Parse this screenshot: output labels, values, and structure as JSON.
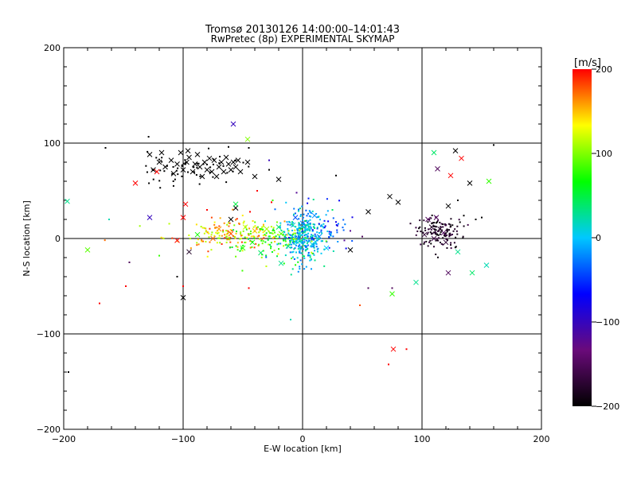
{
  "chart_data": {
    "type": "scatter",
    "title": "Tromsø 20130126 14:00:00–14:01:43",
    "subtitle": "RwPretec (8p) EXPERIMENTAL SKYMAP",
    "xlabel": "E-W location [km]",
    "ylabel": "N-S location [km]",
    "xlim": [
      -200,
      200
    ],
    "ylim": [
      -200,
      200
    ],
    "x_ticks": [
      "−200",
      "−100",
      "0",
      "100",
      "200"
    ],
    "y_ticks": [
      "−200",
      "−100",
      "0",
      "100",
      "200"
    ],
    "grid_lines": [
      -100,
      0,
      100
    ],
    "colorbar": {
      "label": "[m/s]",
      "range": [
        -200,
        200
      ],
      "ticks": [
        "200",
        "100",
        "0",
        "−100",
        "−200"
      ],
      "stops": [
        "#000000",
        "#6a0a7a",
        "#0000ff",
        "#00c8ff",
        "#00ff00",
        "#ffff00",
        "#ff0000"
      ]
    },
    "marker_points": [
      [
        -120,
        80,
        -200
      ],
      [
        -115,
        75,
        -200
      ],
      [
        -110,
        82,
        -200
      ],
      [
        -105,
        78,
        -200
      ],
      [
        -100,
        72,
        -200
      ],
      [
        -97,
        80,
        -200
      ],
      [
        -95,
        85,
        -200
      ],
      [
        -92,
        70,
        -200
      ],
      [
        -90,
        78,
        -200
      ],
      [
        -88,
        88,
        -200
      ],
      [
        -86,
        75,
        -200
      ],
      [
        -84,
        65,
        -200
      ],
      [
        -82,
        80,
        -200
      ],
      [
        -80,
        72,
        -200
      ],
      [
        -78,
        84,
        -200
      ],
      [
        -76,
        70,
        -200
      ],
      [
        -74,
        82,
        -200
      ],
      [
        -72,
        65,
        -200
      ],
      [
        -70,
        75,
        -200
      ],
      [
        -68,
        80,
        -200
      ],
      [
        -66,
        70,
        -200
      ],
      [
        -64,
        85,
        -200
      ],
      [
        -62,
        78,
        -200
      ],
      [
        -60,
        72,
        -200
      ],
      [
        -58,
        80,
        -200
      ],
      [
        -56,
        75,
        -200
      ],
      [
        -54,
        82,
        -200
      ],
      [
        -125,
        72,
        -200
      ],
      [
        -128,
        88,
        -200
      ],
      [
        -118,
        90,
        -200
      ],
      [
        -108,
        68,
        -200
      ],
      [
        -102,
        90,
        -200
      ],
      [
        -96,
        92,
        -200
      ],
      [
        -52,
        70,
        -200
      ],
      [
        -46,
        80,
        -200
      ],
      [
        -40,
        65,
        -200
      ],
      [
        -20,
        62,
        -200
      ],
      [
        -56,
        32,
        -200
      ],
      [
        -60,
        20,
        -200
      ],
      [
        -100,
        -62,
        -200
      ],
      [
        55,
        28,
        -200
      ],
      [
        73,
        44,
        -200
      ],
      [
        80,
        38,
        -200
      ],
      [
        140,
        58,
        -200
      ],
      [
        128,
        92,
        -200
      ],
      [
        113,
        73,
        -150
      ],
      [
        122,
        34,
        -200
      ],
      [
        105,
        20,
        -150
      ],
      [
        112,
        22,
        -150
      ],
      [
        108,
        12,
        -180
      ],
      [
        102,
        4,
        -170
      ],
      [
        110,
        0,
        -160
      ],
      [
        118,
        6,
        -150
      ],
      [
        120,
        -4,
        -170
      ],
      [
        115,
        10,
        -180
      ],
      [
        40,
        -12,
        -200
      ],
      [
        122,
        -36,
        -150
      ],
      [
        -58,
        120,
        -100
      ],
      [
        -128,
        22,
        -100
      ],
      [
        -100,
        22,
        200
      ],
      [
        -98,
        36,
        200
      ],
      [
        -105,
        -2,
        200
      ],
      [
        -140,
        58,
        200
      ],
      [
        -122,
        70,
        200
      ],
      [
        133,
        84,
        200
      ],
      [
        124,
        66,
        200
      ],
      [
        76,
        -116,
        200
      ],
      [
        -60,
        5,
        180
      ],
      [
        -70,
        10,
        160
      ],
      [
        -75,
        0,
        170
      ],
      [
        -40,
        8,
        150
      ],
      [
        -48,
        12,
        120
      ],
      [
        -30,
        10,
        110
      ],
      [
        -18,
        5,
        90
      ],
      [
        -42,
        -4,
        60
      ],
      [
        -50,
        -10,
        80
      ],
      [
        -88,
        4,
        70
      ],
      [
        -95,
        -14,
        -180
      ],
      [
        -56,
        36,
        50
      ],
      [
        -46,
        104,
        100
      ],
      [
        -180,
        -12,
        90
      ],
      [
        -197,
        39,
        30
      ],
      [
        -20,
        12,
        40
      ],
      [
        -35,
        -15,
        40
      ],
      [
        -18,
        -26,
        30
      ],
      [
        -8,
        14,
        20
      ],
      [
        -4,
        -4,
        10
      ],
      [
        4,
        10,
        0
      ],
      [
        8,
        -6,
        10
      ],
      [
        14,
        2,
        -20
      ],
      [
        20,
        -10,
        0
      ],
      [
        -12,
        -8,
        30
      ],
      [
        0,
        16,
        -30
      ],
      [
        -6,
        22,
        -40
      ],
      [
        10,
        24,
        -20
      ],
      [
        75,
        -58,
        80
      ],
      [
        95,
        -46,
        30
      ],
      [
        110,
        90,
        40
      ],
      [
        130,
        -14,
        30
      ],
      [
        142,
        -36,
        40
      ],
      [
        154,
        -28,
        20
      ],
      [
        156,
        60,
        80
      ]
    ],
    "dense_clusters": [
      {
        "cx": 0,
        "cy": 2,
        "sx": 9,
        "sy": 14,
        "n": 320,
        "vmin": -40,
        "vmax": 40
      },
      {
        "cx": -65,
        "cy": 5,
        "sx": 25,
        "sy": 8,
        "n": 150,
        "vmin": 100,
        "vmax": 190
      },
      {
        "cx": -30,
        "cy": 0,
        "sx": 18,
        "sy": 10,
        "n": 110,
        "vmin": 40,
        "vmax": 120
      },
      {
        "cx": 115,
        "cy": 6,
        "sx": 11,
        "sy": 8,
        "n": 130,
        "vmin": -200,
        "vmax": -160
      },
      {
        "cx": -95,
        "cy": 75,
        "sx": 22,
        "sy": 9,
        "n": 60,
        "vmin": -200,
        "vmax": -200
      },
      {
        "cx": 20,
        "cy": 10,
        "sx": 10,
        "sy": 12,
        "n": 40,
        "vmin": -80,
        "vmax": -20
      }
    ],
    "sparse_points": [
      [
        -165,
        95,
        -200
      ],
      [
        -196,
        -140,
        -200
      ],
      [
        -170,
        -68,
        200
      ],
      [
        -100,
        -50,
        200
      ],
      [
        -105,
        -40,
        -200
      ],
      [
        -148,
        -50,
        200
      ],
      [
        -45,
        -52,
        200
      ],
      [
        -10,
        -85,
        20
      ],
      [
        72,
        -132,
        200
      ],
      [
        87,
        -116,
        200
      ],
      [
        48,
        -70,
        180
      ],
      [
        55,
        -52,
        -150
      ],
      [
        75,
        -52,
        -150
      ],
      [
        122,
        -200,
        -200
      ],
      [
        160,
        98,
        -200
      ],
      [
        28,
        66,
        -200
      ],
      [
        -28,
        72,
        -200
      ],
      [
        -45,
        95,
        -200
      ],
      [
        -62,
        96,
        -200
      ],
      [
        -5,
        48,
        -120
      ],
      [
        5,
        42,
        -60
      ],
      [
        -26,
        38,
        200
      ],
      [
        -38,
        50,
        200
      ],
      [
        -44,
        28,
        200
      ],
      [
        -56,
        82,
        -200
      ],
      [
        145,
        20,
        -200
      ],
      [
        135,
        24,
        -200
      ],
      [
        150,
        22,
        -200
      ],
      [
        130,
        40,
        -200
      ],
      [
        -15,
        18,
        160
      ],
      [
        -25,
        40,
        80
      ],
      [
        35,
        -2,
        -120
      ],
      [
        40,
        8,
        -120
      ],
      [
        -28,
        82,
        -100
      ],
      [
        -120,
        -18,
        80
      ],
      [
        -162,
        20,
        20
      ],
      [
        -145,
        -25,
        -150
      ],
      [
        25,
        30,
        40
      ],
      [
        50,
        2,
        -150
      ],
      [
        -80,
        30,
        200
      ]
    ]
  }
}
